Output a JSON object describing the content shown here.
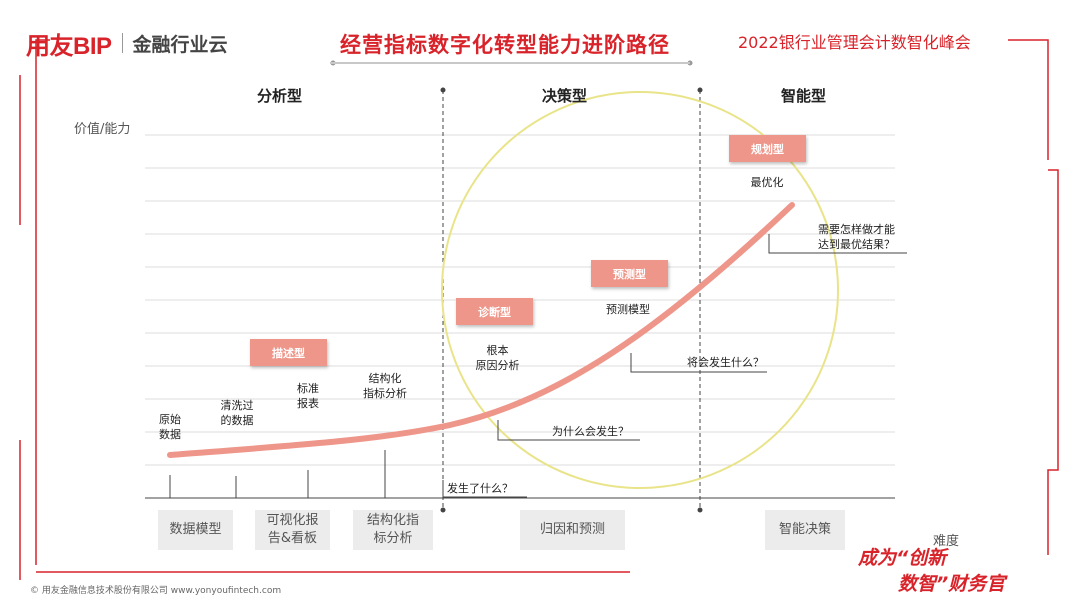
{
  "header": {
    "brand": "用友BIP",
    "sub_brand": "金融行业云",
    "title": "经营指标数字化转型能力进阶路径",
    "conference": "2022银行业管理会计数智化峰会"
  },
  "stages": [
    "分析型",
    "决策型",
    "智能型"
  ],
  "axes": {
    "y_label": "价值/能力",
    "x_label": "难度"
  },
  "boxes": {
    "describe": "描述型",
    "diagnose": "诊断型",
    "predict": "预测型",
    "prescribe": "规划型"
  },
  "annotations": {
    "raw_data": "原始\n数据",
    "cleaned_data": "清洗过\n的数据",
    "standard_report": "标准\n报表",
    "structured_analysis": "结构化\n指标分析",
    "root_cause": "根本\n原因分析",
    "predictive_model": "预测模型",
    "optimization": "最优化"
  },
  "questions": {
    "what_happened": "发生了什么？",
    "why_happened": "为什么会发生？",
    "what_will_happen": "将会发生什么？",
    "how_best": "需要怎样做才能\n达到最优结果？"
  },
  "bottom_buttons": [
    "数据模型",
    "可视化报\n告&看板",
    "结构化指\n标分析",
    "归因和预测",
    "智能决策"
  ],
  "footer": {
    "slogan_line1": "成为“创新",
    "slogan_line2": "数智”财务官",
    "copyright": "© 用友金融信息技术股份有限公司  www.yonyoufintech.com"
  },
  "colors": {
    "brand_red": "#d9232a",
    "curve": "#ee968a",
    "ellipse": "#e9e48a",
    "box_fill": "#ee968a",
    "button_bg": "#ececec"
  }
}
